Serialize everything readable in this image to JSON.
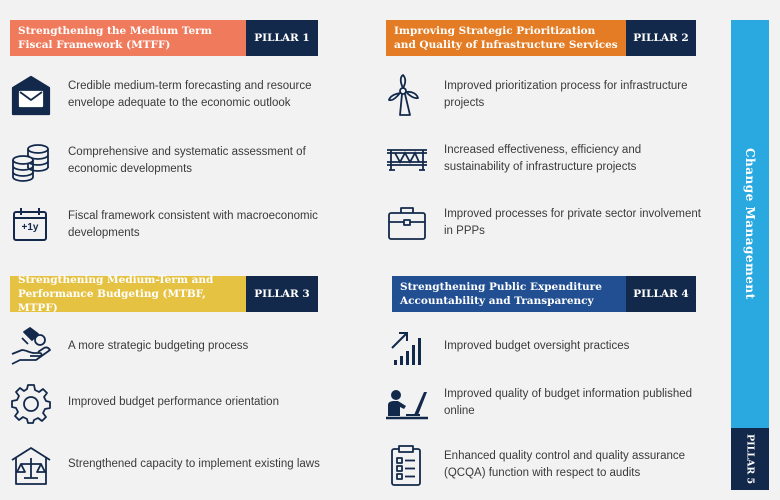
{
  "colors": {
    "p1": "#ef7a5c",
    "p2": "#e37c24",
    "p3": "#e6c243",
    "p4": "#214f92",
    "navy": "#13294b",
    "change": "#29a9df"
  },
  "pillars": [
    {
      "title": "Strengthening the Medium Term Fiscal Framework (MTFF)",
      "tag": "PILLAR 1",
      "items": [
        {
          "icon": "envelope-tray-icon",
          "text": "Credible medium-term forecasting and resource envelope adequate to the economic outlook"
        },
        {
          "icon": "coin-stack-icon",
          "text": "Comprehensive and systematic assessment of economic developments"
        },
        {
          "icon": "calendar-plus-one-year-icon",
          "text": "Fiscal framework consistent with macroeconomic developments",
          "icon_label": "+1y"
        }
      ]
    },
    {
      "title": "Improving Strategic Prioritization and Quality of Infrastructure Services",
      "tag": "PILLAR 2",
      "items": [
        {
          "icon": "wind-turbine-icon",
          "text": "Improved prioritization process for infrastructure projects"
        },
        {
          "icon": "bridge-icon",
          "text": "Increased effectiveness, efficiency and sustainability of infrastructure projects"
        },
        {
          "icon": "briefcase-icon",
          "text": "Improved processes for private sector involvement in PPPs"
        }
      ]
    },
    {
      "title": "Strengthening Medium-Term and Performance Budgeting (MTBF, MTPF)",
      "tag": "PILLAR 3",
      "items": [
        {
          "icon": "hand-coins-icon",
          "text": "A more strategic budgeting process"
        },
        {
          "icon": "gear-icon",
          "text": "Improved budget performance orientation"
        },
        {
          "icon": "scales-building-icon",
          "text": "Strengthened capacity to implement existing laws"
        }
      ]
    },
    {
      "title": "Strengthening Public Expenditure Accountability and Transparency",
      "tag": "PILLAR 4",
      "items": [
        {
          "icon": "bar-chart-arrow-icon",
          "text": "Improved budget oversight practices"
        },
        {
          "icon": "person-laptop-icon",
          "text": "Improved quality of budget information published online"
        },
        {
          "icon": "clipboard-checklist-icon",
          "text": "Enhanced quality control and quality assurance (QCQA) function with respect to audits"
        }
      ]
    }
  ],
  "side": {
    "label": "Change Management",
    "tag": "PILLAR 5"
  }
}
